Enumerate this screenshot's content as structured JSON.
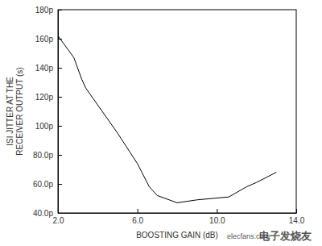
{
  "chart_data": {
    "type": "line",
    "x_label": "BOOSTING GAIN (dB)",
    "y_label": "ISI JITTER AT THE RECEIVER OUTPUT (s)",
    "annotations": [
      "elecfans.com",
      "电子发烧友"
    ],
    "x": [
      2.0,
      2.8,
      3.2,
      3.4,
      5.0,
      6.0,
      6.6,
      7.0,
      8.0,
      9.0,
      10.6,
      11.5,
      12.0,
      13.0
    ],
    "series": [
      {
        "name": "ISI jitter",
        "color": "#000000",
        "values": [
          1.62e-10,
          1.47e-10,
          1.32e-10,
          1.26e-10,
          9.5e-11,
          7.4e-11,
          5.8e-11,
          5.2e-11,
          4.7e-11,
          4.9e-11,
          5.1e-11,
          5.8e-11,
          6.1e-11,
          6.8e-11
        ]
      }
    ],
    "xlim": [
      2,
      14
    ],
    "xticks": [
      {
        "value": 2,
        "label": "2.0"
      },
      {
        "value": 6,
        "label": "6.0"
      },
      {
        "value": 10,
        "label": "10.0"
      },
      {
        "value": 14,
        "label": "14.0"
      }
    ],
    "ylim": [
      4e-11,
      1.8e-10
    ],
    "yticks": [
      {
        "value": 4e-11,
        "label": "40.0p"
      },
      {
        "value": 6e-11,
        "label": "60.0p"
      },
      {
        "value": 8e-11,
        "label": "80.0p"
      },
      {
        "value": 1e-10,
        "label": "100p"
      },
      {
        "value": 1.2e-10,
        "label": "120p"
      },
      {
        "value": 1.4e-10,
        "label": "140p"
      },
      {
        "value": 1.6e-10,
        "label": "160p"
      },
      {
        "value": 1.8e-10,
        "label": "180p"
      }
    ],
    "grid": false
  }
}
